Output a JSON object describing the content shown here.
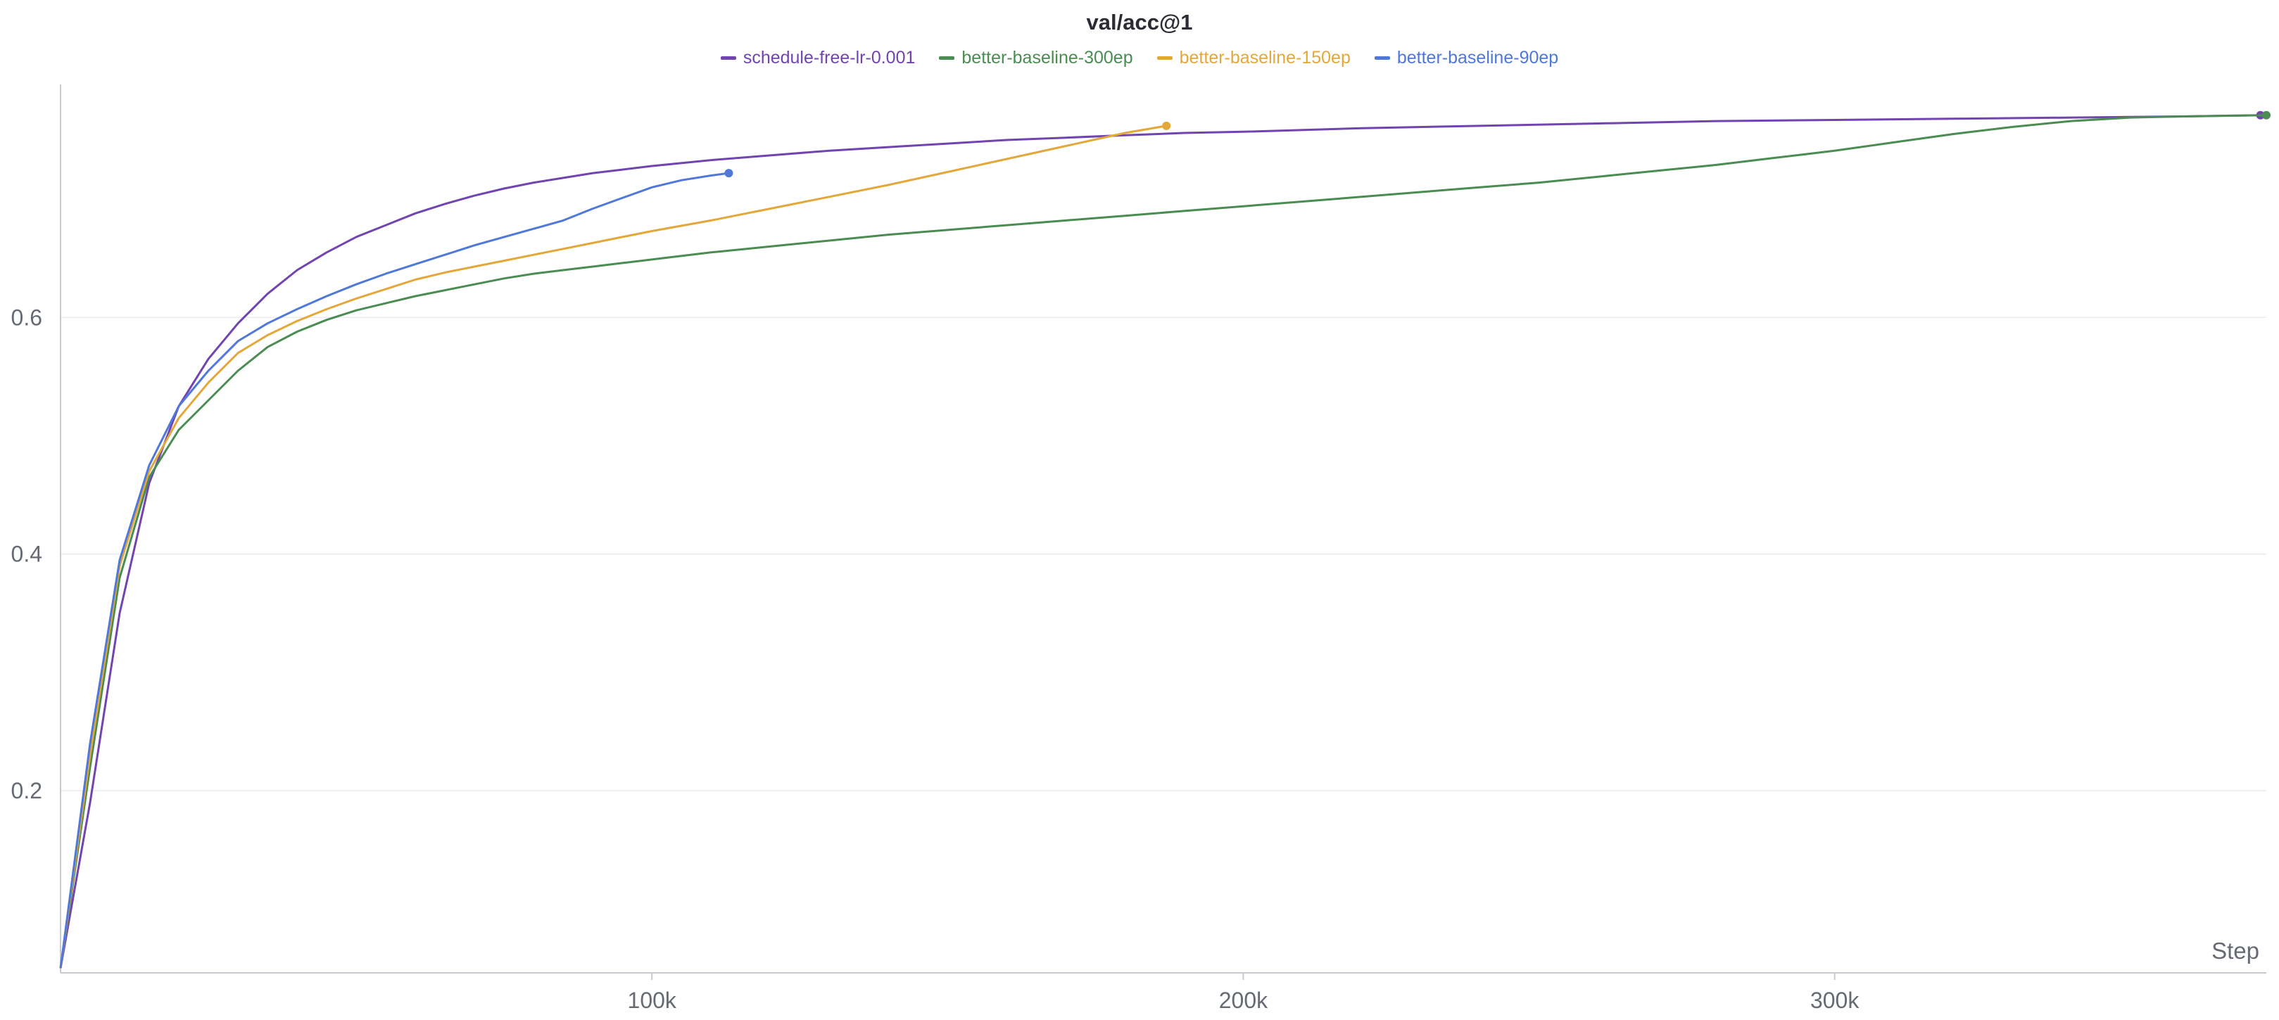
{
  "chart_data": {
    "type": "line",
    "title": "val/acc@1",
    "xlabel": "Step",
    "ylabel": "",
    "xlim": [
      0,
      373000
    ],
    "ylim": [
      0.046,
      0.797
    ],
    "x_ticks": [
      {
        "value": 100000,
        "label": "100k"
      },
      {
        "value": 200000,
        "label": "200k"
      },
      {
        "value": 300000,
        "label": "300k"
      }
    ],
    "y_ticks": [
      {
        "value": 0.2,
        "label": "0.2"
      },
      {
        "value": 0.4,
        "label": "0.4"
      },
      {
        "value": 0.6,
        "label": "0.6"
      }
    ],
    "grid": true,
    "legend_position": "top-center",
    "series": [
      {
        "name": "schedule-free-lr-0.001",
        "color": "#7244b0",
        "points": [
          [
            0,
            0.05
          ],
          [
            5000,
            0.19
          ],
          [
            10000,
            0.35
          ],
          [
            15000,
            0.46
          ],
          [
            20000,
            0.525
          ],
          [
            25000,
            0.565
          ],
          [
            30000,
            0.595
          ],
          [
            35000,
            0.62
          ],
          [
            40000,
            0.64
          ],
          [
            45000,
            0.655
          ],
          [
            50000,
            0.668
          ],
          [
            55000,
            0.678
          ],
          [
            60000,
            0.688
          ],
          [
            65000,
            0.696
          ],
          [
            70000,
            0.703
          ],
          [
            75000,
            0.709
          ],
          [
            80000,
            0.714
          ],
          [
            85000,
            0.718
          ],
          [
            90000,
            0.722
          ],
          [
            95000,
            0.725
          ],
          [
            100000,
            0.728
          ],
          [
            110000,
            0.733
          ],
          [
            120000,
            0.737
          ],
          [
            130000,
            0.741
          ],
          [
            140000,
            0.744
          ],
          [
            150000,
            0.747
          ],
          [
            160000,
            0.75
          ],
          [
            170000,
            0.752
          ],
          [
            180000,
            0.754
          ],
          [
            190000,
            0.756
          ],
          [
            200000,
            0.757
          ],
          [
            220000,
            0.76
          ],
          [
            240000,
            0.762
          ],
          [
            260000,
            0.764
          ],
          [
            280000,
            0.766
          ],
          [
            300000,
            0.767
          ],
          [
            320000,
            0.768
          ],
          [
            340000,
            0.769
          ],
          [
            360000,
            0.77
          ],
          [
            372000,
            0.771
          ]
        ]
      },
      {
        "name": "better-baseline-300ep",
        "color": "#4a8c52",
        "points": [
          [
            0,
            0.05
          ],
          [
            5000,
            0.22
          ],
          [
            10000,
            0.38
          ],
          [
            15000,
            0.465
          ],
          [
            20000,
            0.505
          ],
          [
            25000,
            0.53
          ],
          [
            30000,
            0.555
          ],
          [
            35000,
            0.575
          ],
          [
            40000,
            0.588
          ],
          [
            45000,
            0.598
          ],
          [
            50000,
            0.606
          ],
          [
            55000,
            0.612
          ],
          [
            60000,
            0.618
          ],
          [
            65000,
            0.623
          ],
          [
            70000,
            0.628
          ],
          [
            75000,
            0.633
          ],
          [
            80000,
            0.637
          ],
          [
            85000,
            0.64
          ],
          [
            90000,
            0.643
          ],
          [
            95000,
            0.646
          ],
          [
            100000,
            0.649
          ],
          [
            110000,
            0.655
          ],
          [
            120000,
            0.66
          ],
          [
            130000,
            0.665
          ],
          [
            140000,
            0.67
          ],
          [
            150000,
            0.674
          ],
          [
            160000,
            0.678
          ],
          [
            170000,
            0.682
          ],
          [
            180000,
            0.686
          ],
          [
            190000,
            0.69
          ],
          [
            200000,
            0.694
          ],
          [
            210000,
            0.698
          ],
          [
            220000,
            0.702
          ],
          [
            230000,
            0.706
          ],
          [
            240000,
            0.71
          ],
          [
            250000,
            0.714
          ],
          [
            260000,
            0.719
          ],
          [
            270000,
            0.724
          ],
          [
            280000,
            0.729
          ],
          [
            290000,
            0.735
          ],
          [
            300000,
            0.741
          ],
          [
            310000,
            0.748
          ],
          [
            320000,
            0.755
          ],
          [
            330000,
            0.761
          ],
          [
            340000,
            0.766
          ],
          [
            350000,
            0.769
          ],
          [
            360000,
            0.77
          ],
          [
            373000,
            0.771
          ]
        ]
      },
      {
        "name": "better-baseline-150ep",
        "color": "#e3a73a",
        "points": [
          [
            0,
            0.05
          ],
          [
            5000,
            0.23
          ],
          [
            10000,
            0.39
          ],
          [
            15000,
            0.47
          ],
          [
            20000,
            0.515
          ],
          [
            25000,
            0.545
          ],
          [
            30000,
            0.57
          ],
          [
            35000,
            0.585
          ],
          [
            40000,
            0.597
          ],
          [
            45000,
            0.607
          ],
          [
            50000,
            0.616
          ],
          [
            55000,
            0.624
          ],
          [
            60000,
            0.632
          ],
          [
            65000,
            0.638
          ],
          [
            70000,
            0.643
          ],
          [
            75000,
            0.648
          ],
          [
            80000,
            0.653
          ],
          [
            85000,
            0.658
          ],
          [
            90000,
            0.663
          ],
          [
            95000,
            0.668
          ],
          [
            100000,
            0.673
          ],
          [
            110000,
            0.682
          ],
          [
            120000,
            0.692
          ],
          [
            130000,
            0.702
          ],
          [
            140000,
            0.712
          ],
          [
            150000,
            0.723
          ],
          [
            160000,
            0.734
          ],
          [
            170000,
            0.745
          ],
          [
            180000,
            0.756
          ],
          [
            187000,
            0.762
          ]
        ]
      },
      {
        "name": "better-baseline-90ep",
        "color": "#4f78d9",
        "points": [
          [
            0,
            0.05
          ],
          [
            5000,
            0.24
          ],
          [
            10000,
            0.395
          ],
          [
            15000,
            0.475
          ],
          [
            20000,
            0.525
          ],
          [
            25000,
            0.555
          ],
          [
            30000,
            0.58
          ],
          [
            35000,
            0.595
          ],
          [
            40000,
            0.607
          ],
          [
            45000,
            0.618
          ],
          [
            50000,
            0.628
          ],
          [
            55000,
            0.637
          ],
          [
            60000,
            0.645
          ],
          [
            65000,
            0.653
          ],
          [
            70000,
            0.661
          ],
          [
            75000,
            0.668
          ],
          [
            80000,
            0.675
          ],
          [
            85000,
            0.682
          ],
          [
            90000,
            0.692
          ],
          [
            95000,
            0.701
          ],
          [
            100000,
            0.71
          ],
          [
            105000,
            0.716
          ],
          [
            110000,
            0.72
          ],
          [
            113000,
            0.722
          ]
        ]
      }
    ]
  }
}
